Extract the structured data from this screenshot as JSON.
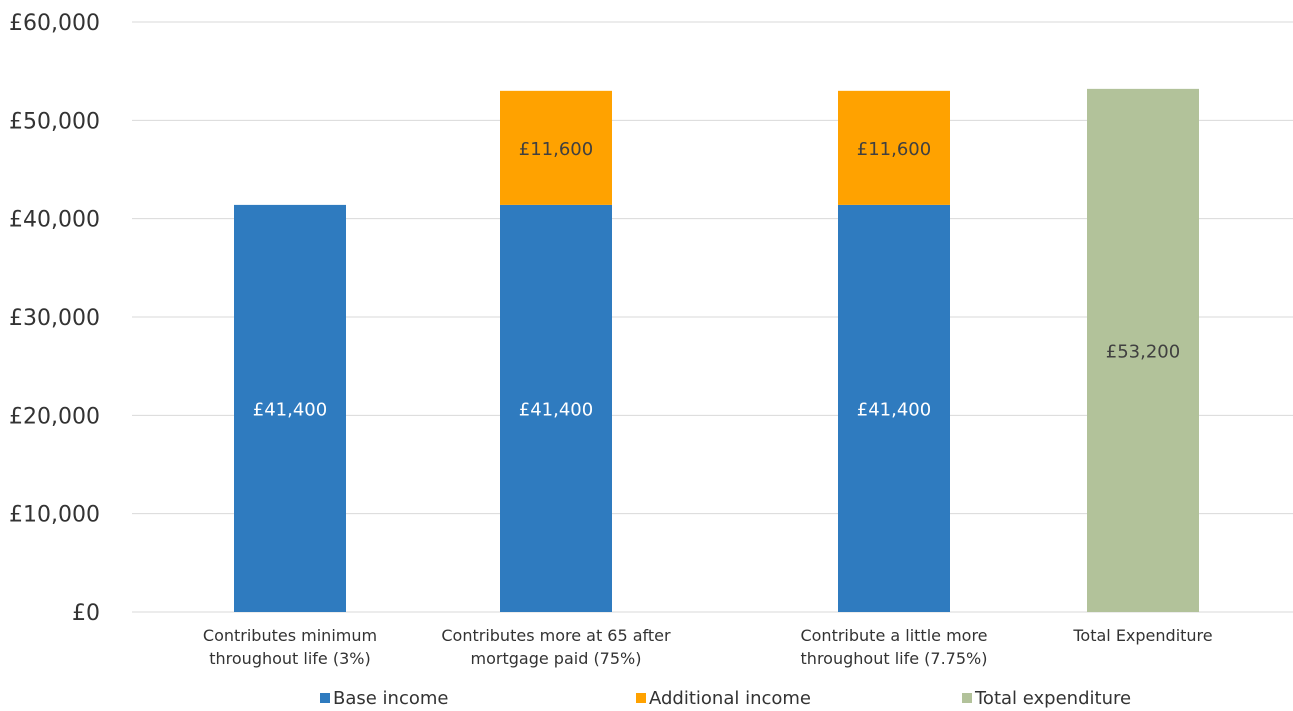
{
  "chart_data": {
    "type": "bar",
    "stacked": true,
    "categories": [
      [
        "Contributes minimum",
        "throughout life (3%)"
      ],
      [
        "Contributes more at 65 after",
        "mortgage paid (75%)"
      ],
      [
        "Contribute a little more",
        "throughout life (7.75%)"
      ],
      [
        "Total Expenditure"
      ]
    ],
    "series": [
      {
        "name": "Base income",
        "color": "#2f7bbf",
        "label_color": "#ffffff",
        "values": [
          41400,
          41400,
          41400,
          null
        ],
        "labels": [
          "£41,400",
          "£41,400",
          "£41,400",
          ""
        ]
      },
      {
        "name": "Additional income",
        "color": "#ffa200",
        "label_color": "#404040",
        "values": [
          null,
          11600,
          11600,
          null
        ],
        "labels": [
          "",
          "£11,600",
          "£11,600",
          ""
        ]
      },
      {
        "name": "Total expenditure",
        "color": "#b2c29a",
        "label_color": "#404040",
        "values": [
          null,
          null,
          null,
          53200
        ],
        "labels": [
          "",
          "",
          "",
          "£53,200"
        ]
      }
    ],
    "ylim": [
      0,
      60000
    ],
    "yticks": [
      0,
      10000,
      20000,
      30000,
      40000,
      50000,
      60000
    ],
    "ytick_labels": [
      "£0",
      "£10,000",
      "£20,000",
      "£30,000",
      "£40,000",
      "£50,000",
      "£60,000"
    ],
    "title": "",
    "xlabel": "",
    "ylabel": "",
    "grid": true,
    "legend_position": "bottom"
  }
}
